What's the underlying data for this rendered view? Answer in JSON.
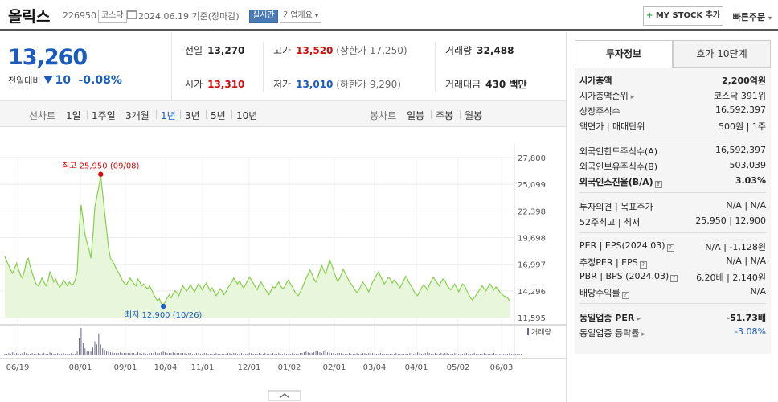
{
  "header": {
    "name": "올릭스",
    "code": "226950",
    "market_tag": "코스닥",
    "date": "2024.06.19 기준(장마감)",
    "live_tag": "실시간",
    "company_tag": "기업개요",
    "mystock_label": "MY STOCK 추가",
    "quick_order": "빠른주문"
  },
  "price": {
    "current": "13,260",
    "change_label": "전일대비",
    "change": "10",
    "change_pct": "-0.08%"
  },
  "quotes": {
    "prev_label": "전일",
    "prev": "13,270",
    "high_label": "고가",
    "high": "13,520",
    "upper_limit": "(상한가 17,250)",
    "volume_label": "거래량",
    "volume": "32,488",
    "open_label": "시가",
    "open": "13,310",
    "low_label": "저가",
    "low": "13,010",
    "lower_limit": "(하한가 9,290)",
    "amount_label": "거래대금",
    "amount": "430 백만"
  },
  "periods": {
    "line_label": "선차트",
    "line_items": [
      "1일",
      "1주일",
      "3개월",
      "1년",
      "3년",
      "5년",
      "10년"
    ],
    "active": "1년",
    "candle_label": "봉차트",
    "candle_items": [
      "일봉",
      "주봉",
      "월봉"
    ]
  },
  "chart_data": {
    "type": "area",
    "title": "",
    "xlabel": "",
    "ylabel": "",
    "x_ticks": [
      "06/19",
      "08/01",
      "09/01",
      "10/04",
      "11/01",
      "12/01",
      "01/02",
      "02/01",
      "03/04",
      "04/01",
      "05/02",
      "06/03"
    ],
    "y_ticks": [
      "27,800",
      "25,099",
      "22,398",
      "19,698",
      "16,997",
      "14,296",
      "11,595"
    ],
    "ylim": [
      11595,
      27800
    ],
    "high_label": "최고 25,950 (09/08)",
    "low_label": "최저 12,900 (10/26)",
    "volume_label": "거래량",
    "line_color": "#86cf4a",
    "fill_color": "#e8f6dc",
    "series": [
      {
        "values": [
          17800,
          17300,
          16900,
          16400,
          16100,
          16600,
          17100,
          16500,
          15900,
          15600,
          16300,
          17300,
          17600,
          16800,
          16100,
          15500,
          15000,
          14800,
          15100,
          15600,
          15200,
          14800,
          15300,
          16200,
          15800,
          15200,
          15500,
          15000,
          14700,
          14900,
          15400,
          15100,
          14800,
          15200,
          14900,
          15000,
          15400,
          16300,
          20500,
          23000,
          21500,
          20000,
          19200,
          18500,
          17600,
          19800,
          22800,
          23800,
          24800,
          25950,
          24200,
          22300,
          20500,
          18700,
          17600,
          17300,
          17000,
          16500,
          16200,
          15800,
          15400,
          15100,
          14900,
          15200,
          15600,
          15300,
          15000,
          14800,
          15500,
          15200,
          14800,
          15000,
          14700,
          14500,
          14800,
          14400,
          14000,
          13600,
          13300,
          13500,
          13000,
          12900,
          13200,
          13600,
          13900,
          13600,
          14000,
          14300,
          14100,
          13800,
          14400,
          14800,
          14500,
          14300,
          14600,
          14900,
          14500,
          14200,
          14600,
          15000,
          14700,
          14400,
          14800,
          15100,
          14700,
          14300,
          14600,
          14200,
          13800,
          14100,
          14500,
          14300,
          13900,
          14200,
          14600,
          14900,
          15200,
          15600,
          15300,
          15000,
          15300,
          14900,
          14600,
          14900,
          15300,
          15700,
          15400,
          15100,
          14700,
          14400,
          14900,
          15200,
          14800,
          14500,
          14200,
          13900,
          14300,
          14700,
          14600,
          14900,
          15200,
          14800,
          14500,
          14700,
          15100,
          15400,
          15000,
          14700,
          14300,
          14000,
          13800,
          14200,
          14600,
          15100,
          15600,
          16000,
          16400,
          16000,
          15500,
          15200,
          15700,
          16300,
          16900,
          16400,
          16000,
          16700,
          17400,
          17000,
          16400,
          15800,
          15300,
          15500,
          16000,
          16500,
          16100,
          15700,
          15300,
          15000,
          14700,
          14400,
          14100,
          14400,
          14800,
          15200,
          14900,
          14600,
          14200,
          14700,
          15200,
          15500,
          15900,
          16200,
          15800,
          15400,
          15000,
          15300,
          15700,
          15500,
          15100,
          15400,
          15200,
          14900,
          14600,
          15000,
          15400,
          15800,
          15400,
          15000,
          14700,
          14300,
          14000,
          13800,
          14200,
          14600,
          14900,
          14700,
          14400,
          14900,
          15300,
          15700,
          15400,
          15100,
          14800,
          15200,
          15500,
          15300,
          14900,
          14600,
          14400,
          14700,
          15000,
          14600,
          14200,
          14600,
          15000,
          14800,
          14400,
          14000,
          13600,
          13400,
          13600,
          13900,
          14200,
          14500,
          14800,
          14500,
          14300,
          14700,
          15000,
          14700,
          14400,
          14700,
          14500,
          14200,
          14000,
          13800,
          13700,
          13600,
          13260
        ]
      }
    ],
    "volume": [
      2,
      2,
      3,
      2,
      4,
      2,
      3,
      2,
      2,
      3,
      4,
      3,
      2,
      2,
      3,
      2,
      2,
      3,
      2,
      2,
      3,
      2,
      2,
      4,
      3,
      2,
      2,
      3,
      2,
      2,
      3,
      2,
      2,
      2,
      3,
      2,
      2,
      5,
      22,
      35,
      16,
      9,
      6,
      5,
      5,
      10,
      18,
      14,
      28,
      14,
      9,
      7,
      6,
      5,
      4,
      4,
      3,
      3,
      3,
      4,
      3,
      3,
      3,
      3,
      3,
      3,
      3,
      2,
      4,
      3,
      2,
      3,
      2,
      2,
      3,
      3,
      3,
      4,
      3,
      3,
      4,
      5,
      4,
      3,
      3,
      3,
      4,
      3,
      3,
      3,
      3,
      3,
      3,
      2,
      3,
      3,
      2,
      2,
      3,
      3,
      2,
      2,
      3,
      3,
      2,
      2,
      2,
      2,
      3,
      2,
      2,
      2,
      2,
      2,
      3,
      3,
      2,
      3,
      3,
      2,
      2,
      3,
      2,
      2,
      2,
      3,
      3,
      2,
      2,
      2,
      3,
      2,
      2,
      3,
      2,
      2,
      2,
      3,
      2,
      2,
      3,
      2,
      2,
      3,
      2,
      2,
      2,
      3,
      2,
      2,
      2,
      3,
      3,
      4,
      5,
      4,
      3,
      3,
      4,
      5,
      6,
      4,
      3,
      5,
      7,
      4,
      3,
      3,
      3,
      2,
      3,
      3,
      3,
      2,
      2,
      2,
      3,
      2,
      2,
      2,
      3,
      2,
      2,
      3,
      3,
      2,
      3,
      3,
      3,
      2,
      2,
      2,
      3,
      2,
      2,
      2,
      2,
      2,
      2,
      2,
      3,
      2,
      2,
      2,
      2,
      2,
      2,
      3,
      3,
      2,
      3,
      4,
      3,
      2,
      2,
      3,
      4,
      3,
      2,
      2,
      3,
      2,
      2,
      3,
      2,
      3,
      3,
      2,
      2,
      2,
      3,
      3,
      2,
      2,
      2,
      3,
      3,
      2,
      2,
      2,
      3,
      2,
      2,
      2,
      2,
      3,
      2,
      2,
      2,
      2,
      3,
      2,
      2,
      2,
      2,
      2,
      2,
      2,
      3,
      2,
      2,
      2,
      2,
      2,
      2
    ]
  },
  "info": {
    "tab_active": "투자정보",
    "tab_other": "호가 10단계",
    "rows1": [
      {
        "k": "시가총액",
        "v": "2,200억원",
        "bold": true
      },
      {
        "k": "시가총액순위",
        "v": "코스닥 391위",
        "arrow": true
      },
      {
        "k": "상장주식수",
        "v": "16,592,397"
      },
      {
        "k": "액면가 | 매매단위",
        "v": "500원 | 1주"
      }
    ],
    "rows2": [
      {
        "k": "외국인한도주식수(A)",
        "v": "16,592,397"
      },
      {
        "k": "외국인보유주식수(B)",
        "v": "503,039"
      },
      {
        "k": "외국인소진율(B/A)",
        "v": "3.03%",
        "bold": true,
        "q": true
      }
    ],
    "rows3": [
      {
        "k": "투자의견 | 목표주가",
        "v": "N/A | N/A"
      },
      {
        "k": "52주최고 | 최저",
        "v": "25,950 | 12,900"
      }
    ],
    "rows4": [
      {
        "k": "PER | EPS(2024.03)",
        "v": "N/A | -1,128원",
        "q": true
      },
      {
        "k": "추정PER | EPS",
        "v": "N/A | N/A",
        "q": true
      },
      {
        "k": "PBR | BPS (2024.03)",
        "v": "6.20배 | 2,140원",
        "q": true
      },
      {
        "k": "배당수익률",
        "v": "N/A",
        "q": true
      }
    ],
    "rows5": [
      {
        "k": "동일업종 PER",
        "v": "-51.73배",
        "bold": true,
        "arrow": true
      },
      {
        "k": "동일업종 등락률",
        "v": "-3.08%",
        "arrow": true,
        "blue": true
      }
    ]
  }
}
